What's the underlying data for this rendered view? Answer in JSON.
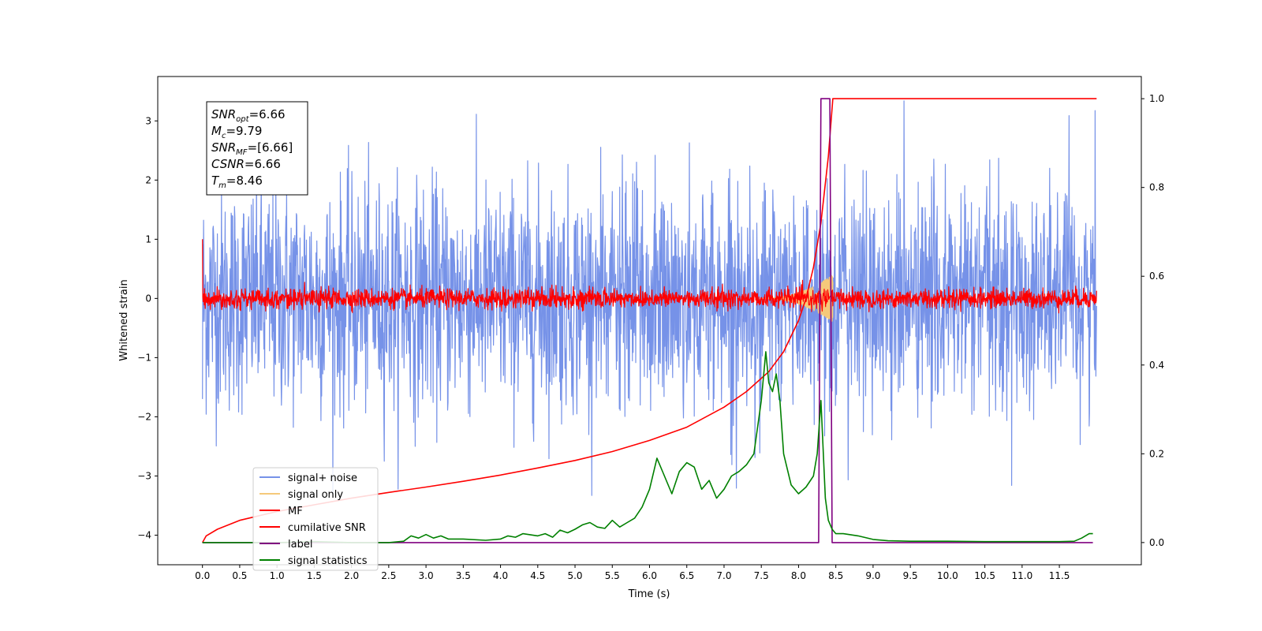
{
  "chart_data": {
    "type": "line",
    "title": "",
    "xlabel": "Time (s)",
    "ylabel": "Whitened strain",
    "xlim": [
      -0.6,
      12.6
    ],
    "ylim": [
      -4.5,
      3.75
    ],
    "y2lim": [
      -0.05,
      1.05
    ],
    "x_ticks": [
      0.0,
      0.5,
      1.0,
      1.5,
      2.0,
      2.5,
      3.0,
      3.5,
      4.0,
      4.5,
      5.0,
      5.5,
      6.0,
      6.5,
      7.0,
      7.5,
      8.0,
      8.5,
      9.0,
      9.5,
      10.0,
      10.5,
      11.0,
      11.5
    ],
    "x_tick_labels": [
      "0.0",
      "0.5",
      "1.0",
      "1.5",
      "2.0",
      "2.5",
      "3.0",
      "3.5",
      "4.0",
      "4.5",
      "5.0",
      "5.5",
      "6.0",
      "6.5",
      "7.0",
      "7.5",
      "8.0",
      "8.5",
      "9.0",
      "9.5",
      "10.0",
      "10.5",
      "11.0",
      "11.5"
    ],
    "y_ticks": [
      3,
      2,
      1,
      0,
      -1,
      -2,
      -3,
      -4
    ],
    "y_tick_labels": [
      "3",
      "2",
      "1",
      "0",
      "−1",
      "−2",
      "−3",
      "−4"
    ],
    "y2_ticks": [
      1.0,
      0.8,
      0.6,
      0.4,
      0.2,
      0.0
    ],
    "y2_tick_labels": [
      "1.0",
      "0.8",
      "0.6",
      "0.4",
      "0.2",
      "0.0"
    ],
    "grid": false,
    "legend_position": "lower-left",
    "annotation": {
      "lines": [
        {
          "base": "SNR",
          "sub": "opt",
          "rest": "=6.66"
        },
        {
          "base": "M",
          "sub": "c",
          "rest": "=9.79"
        },
        {
          "base": "SNR",
          "sub": "MF",
          "rest": "=[6.66]"
        },
        {
          "base": "CSNR",
          "sub": "",
          "rest": "=6.66"
        },
        {
          "base": "T",
          "sub": "m",
          "rest": "=8.46"
        }
      ]
    },
    "series": [
      {
        "name": "signal+ noise",
        "color": "#7692e8",
        "axis": "left",
        "kind": "noise",
        "x_range": [
          0.0,
          12.0
        ],
        "amplitude_std": 0.95,
        "y_min": -3.65,
        "y_max": 3.38
      },
      {
        "name": "signal only",
        "color": "#f5c97a",
        "axis": "left",
        "kind": "chirp",
        "x_range": [
          7.5,
          8.46
        ],
        "peak_amplitude": 0.4
      },
      {
        "name": "MF",
        "color": "#ff0000",
        "axis": "left",
        "kind": "noise",
        "x_range": [
          0.0,
          12.0
        ],
        "amplitude_std": 0.08,
        "y_min": -0.25,
        "y_max": 0.5
      },
      {
        "name": "cumilative SNR",
        "color": "#ff0000",
        "axis": "right",
        "x": [
          0.0,
          0.05,
          0.2,
          0.5,
          1.0,
          1.5,
          2.0,
          2.5,
          3.0,
          3.5,
          4.0,
          4.5,
          5.0,
          5.5,
          6.0,
          6.5,
          7.0,
          7.3,
          7.6,
          7.8,
          8.0,
          8.1,
          8.2,
          8.3,
          8.4,
          8.46,
          12.0
        ],
        "y": [
          0.0,
          0.015,
          0.03,
          0.05,
          0.07,
          0.085,
          0.1,
          0.113,
          0.125,
          0.138,
          0.152,
          0.168,
          0.185,
          0.205,
          0.23,
          0.26,
          0.305,
          0.34,
          0.385,
          0.43,
          0.5,
          0.55,
          0.62,
          0.72,
          0.87,
          1.0,
          1.0
        ]
      },
      {
        "name": "label",
        "color": "#800080",
        "axis": "right",
        "x": [
          0.0,
          8.27,
          8.3,
          8.42,
          8.45,
          11.95
        ],
        "y": [
          0.0,
          0.0,
          1.0,
          1.0,
          0.0,
          0.0
        ]
      },
      {
        "name": "signal statistics",
        "color": "#008000",
        "axis": "right",
        "x": [
          0.0,
          0.5,
          1.0,
          1.5,
          2.0,
          2.5,
          2.7,
          2.8,
          2.9,
          3.0,
          3.1,
          3.2,
          3.3,
          3.5,
          3.8,
          4.0,
          4.1,
          4.2,
          4.3,
          4.5,
          4.6,
          4.7,
          4.8,
          4.9,
          5.0,
          5.1,
          5.2,
          5.3,
          5.4,
          5.5,
          5.6,
          5.7,
          5.8,
          5.9,
          6.0,
          6.1,
          6.2,
          6.3,
          6.4,
          6.5,
          6.6,
          6.7,
          6.8,
          6.9,
          7.0,
          7.1,
          7.2,
          7.3,
          7.4,
          7.5,
          7.56,
          7.6,
          7.65,
          7.7,
          7.75,
          7.8,
          7.9,
          8.0,
          8.1,
          8.2,
          8.25,
          8.3,
          8.36,
          8.4,
          8.45,
          8.5,
          8.6,
          8.8,
          9.0,
          9.2,
          9.5,
          10.0,
          10.5,
          11.0,
          11.5,
          11.7,
          11.8,
          11.9,
          11.95
        ],
        "y": [
          0.0,
          0.0,
          0.0,
          0.002,
          0.0,
          0.0,
          0.003,
          0.015,
          0.01,
          0.018,
          0.01,
          0.015,
          0.008,
          0.008,
          0.005,
          0.008,
          0.015,
          0.012,
          0.02,
          0.015,
          0.02,
          0.012,
          0.028,
          0.022,
          0.03,
          0.04,
          0.045,
          0.035,
          0.032,
          0.05,
          0.035,
          0.045,
          0.055,
          0.08,
          0.12,
          0.19,
          0.15,
          0.11,
          0.16,
          0.18,
          0.17,
          0.12,
          0.14,
          0.1,
          0.12,
          0.15,
          0.16,
          0.175,
          0.2,
          0.32,
          0.43,
          0.36,
          0.34,
          0.38,
          0.32,
          0.2,
          0.13,
          0.11,
          0.125,
          0.15,
          0.2,
          0.32,
          0.1,
          0.05,
          0.03,
          0.02,
          0.02,
          0.015,
          0.007,
          0.004,
          0.003,
          0.003,
          0.002,
          0.002,
          0.002,
          0.003,
          0.01,
          0.02,
          0.02
        ]
      }
    ]
  }
}
